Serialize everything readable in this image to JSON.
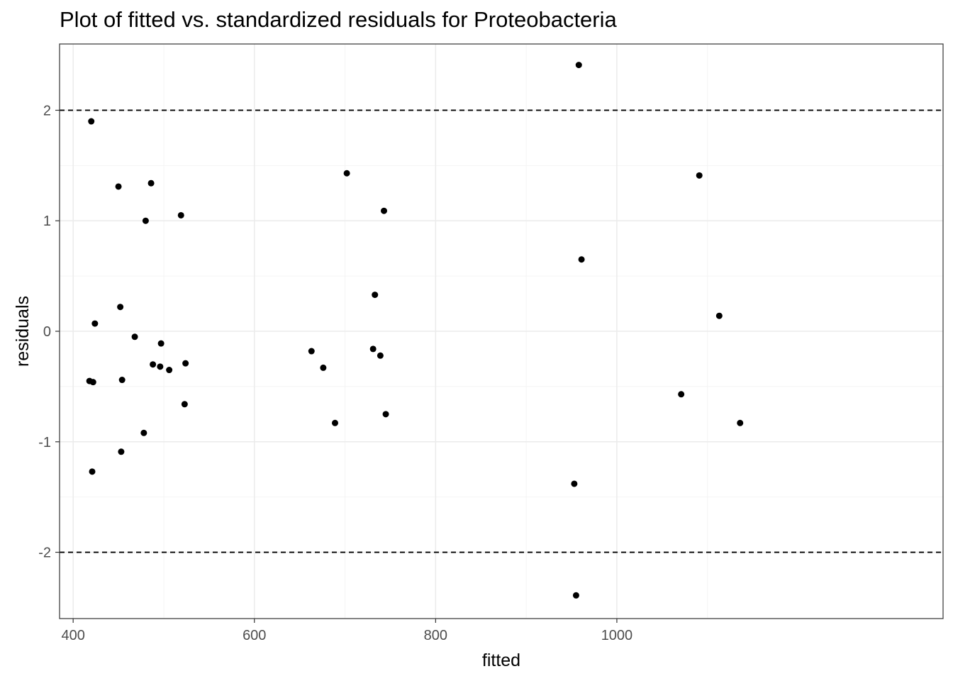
{
  "chart_data": {
    "type": "scatter",
    "title": "Plot of fitted vs. standardized residuals for Proteobacteria",
    "xlabel": "fitted",
    "ylabel": "residuals",
    "xlim": [
      385,
      1360
    ],
    "ylim": [
      -2.6,
      2.6
    ],
    "x_ticks": [
      400,
      600,
      800,
      1000
    ],
    "x_tick_labels": [
      "400",
      "600",
      "800",
      "1000"
    ],
    "y_ticks": [
      -2,
      -1,
      0,
      1,
      2
    ],
    "y_tick_labels": [
      "-2",
      "-1",
      "0",
      "1",
      "2"
    ],
    "x_minor": [
      500,
      700,
      900,
      1100
    ],
    "y_minor": [
      -1.5,
      -0.5,
      0.5,
      1.5
    ],
    "reference_lines": [
      2,
      -2
    ],
    "grid": true,
    "points": [
      {
        "x": 420,
        "y": 1.9
      },
      {
        "x": 418,
        "y": -0.45
      },
      {
        "x": 422,
        "y": -0.46
      },
      {
        "x": 421,
        "y": -1.27
      },
      {
        "x": 424,
        "y": 0.07
      },
      {
        "x": 450,
        "y": 1.31
      },
      {
        "x": 452,
        "y": 0.22
      },
      {
        "x": 454,
        "y": -0.44
      },
      {
        "x": 453,
        "y": -1.09
      },
      {
        "x": 468,
        "y": -0.05
      },
      {
        "x": 478,
        "y": -0.92
      },
      {
        "x": 480,
        "y": 1.0
      },
      {
        "x": 486,
        "y": 1.34
      },
      {
        "x": 488,
        "y": -0.3
      },
      {
        "x": 496,
        "y": -0.32
      },
      {
        "x": 497,
        "y": -0.11
      },
      {
        "x": 506,
        "y": -0.35
      },
      {
        "x": 519,
        "y": 1.05
      },
      {
        "x": 523,
        "y": -0.66
      },
      {
        "x": 524,
        "y": -0.29
      },
      {
        "x": 663,
        "y": -0.18
      },
      {
        "x": 676,
        "y": -0.33
      },
      {
        "x": 689,
        "y": -0.83
      },
      {
        "x": 702,
        "y": 1.43
      },
      {
        "x": 731,
        "y": -0.16
      },
      {
        "x": 733,
        "y": 0.33
      },
      {
        "x": 739,
        "y": -0.22
      },
      {
        "x": 743,
        "y": 1.09
      },
      {
        "x": 745,
        "y": -0.75
      },
      {
        "x": 953,
        "y": -1.38
      },
      {
        "x": 955,
        "y": -2.39
      },
      {
        "x": 958,
        "y": 2.41
      },
      {
        "x": 961,
        "y": 0.65
      },
      {
        "x": 1071,
        "y": -0.57
      },
      {
        "x": 1091,
        "y": 1.41
      },
      {
        "x": 1113,
        "y": 0.14
      },
      {
        "x": 1136,
        "y": -0.83
      }
    ]
  },
  "colors": {
    "points": "#000000",
    "panel_border": "#333333",
    "grid_major": "#ebebeb",
    "grid_minor": "#f4f4f4",
    "reference_line": "#000000"
  }
}
